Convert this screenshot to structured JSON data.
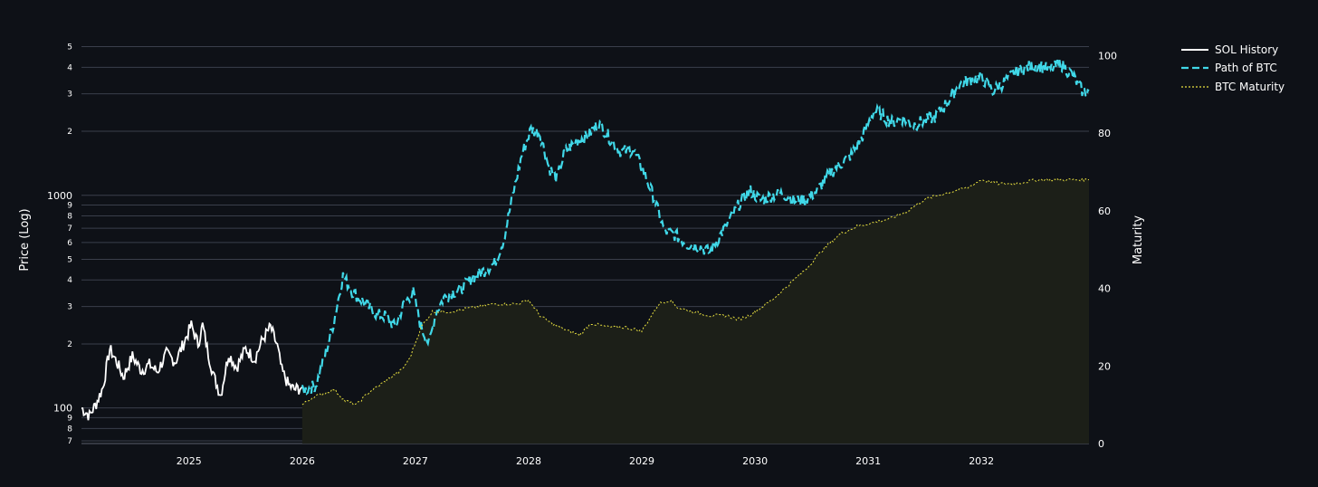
{
  "colors": {
    "background": "#0e1117",
    "grid": "#3a3f4b",
    "sol_history": "#ffffff",
    "path_of_btc": "#40d8e8",
    "btc_maturity_line": "#e8e040",
    "btc_maturity_fill": "#1c1f18",
    "text": "#ffffff"
  },
  "chart_data": {
    "type": "line",
    "title": "",
    "xlabel": "",
    "ylabel": "Price (Log)",
    "y2label": "Maturity",
    "yscale": "log",
    "ylim": [
      68,
      5600
    ],
    "y2lim": [
      0,
      105
    ],
    "xlim": [
      2024.05,
      2032.95
    ],
    "x_ticks": [
      2025,
      2026,
      2027,
      2028,
      2029,
      2030,
      2031,
      2032
    ],
    "x_tick_labels": [
      "2025",
      "2026",
      "2027",
      "2028",
      "2029",
      "2030",
      "2031",
      "2032"
    ],
    "y_major_ticks": [
      {
        "value": 100,
        "label": "100"
      },
      {
        "value": 1000,
        "label": "1000"
      }
    ],
    "y_minor_ticks": [
      {
        "value": 70,
        "label": "7"
      },
      {
        "value": 80,
        "label": "8"
      },
      {
        "value": 90,
        "label": "9"
      },
      {
        "value": 200,
        "label": "2"
      },
      {
        "value": 300,
        "label": "3"
      },
      {
        "value": 400,
        "label": "4"
      },
      {
        "value": 500,
        "label": "5"
      },
      {
        "value": 600,
        "label": "6"
      },
      {
        "value": 700,
        "label": "7"
      },
      {
        "value": 800,
        "label": "8"
      },
      {
        "value": 900,
        "label": "9"
      },
      {
        "value": 2000,
        "label": "2"
      },
      {
        "value": 3000,
        "label": "3"
      },
      {
        "value": 4000,
        "label": "4"
      },
      {
        "value": 5000,
        "label": "5"
      }
    ],
    "y2_ticks": [
      0,
      20,
      40,
      60,
      80,
      100
    ],
    "legend_position": "top-right",
    "legend": [
      {
        "name": "SOL History",
        "style": "solid"
      },
      {
        "name": "Path of BTC",
        "style": "dashed"
      },
      {
        "name": "BTC Maturity",
        "style": "dotted"
      }
    ],
    "series": [
      {
        "name": "SOL History",
        "axis": "left",
        "x": [
          2024.05,
          2024.12,
          2024.18,
          2024.24,
          2024.3,
          2024.36,
          2024.42,
          2024.5,
          2024.58,
          2024.65,
          2024.72,
          2024.8,
          2024.88,
          2024.95,
          2025.02,
          2025.08,
          2025.12,
          2025.17,
          2025.22,
          2025.28,
          2025.35,
          2025.42,
          2025.5,
          2025.58,
          2025.65,
          2025.72,
          2025.78,
          2025.82,
          2025.88,
          2025.93,
          2026.0
        ],
        "values": [
          100,
          92,
          105,
          125,
          190,
          165,
          140,
          175,
          150,
          160,
          148,
          180,
          165,
          200,
          245,
          200,
          245,
          180,
          140,
          115,
          180,
          155,
          190,
          170,
          210,
          240,
          195,
          150,
          128,
          122,
          125
        ]
      },
      {
        "name": "Path of BTC",
        "axis": "left",
        "x": [
          2026.0,
          2026.12,
          2026.2,
          2026.28,
          2026.36,
          2026.43,
          2026.5,
          2026.58,
          2026.66,
          2026.74,
          2026.82,
          2026.9,
          2026.98,
          2027.05,
          2027.12,
          2027.18,
          2027.25,
          2027.32,
          2027.4,
          2027.5,
          2027.6,
          2027.7,
          2027.78,
          2027.86,
          2027.94,
          2028.02,
          2028.1,
          2028.18,
          2028.25,
          2028.32,
          2028.42,
          2028.52,
          2028.62,
          2028.72,
          2028.82,
          2028.92,
          2029.0,
          2029.1,
          2029.2,
          2029.3,
          2029.4,
          2029.5,
          2029.6,
          2029.7,
          2029.8,
          2029.88,
          2029.96,
          2030.05,
          2030.15,
          2030.25,
          2030.35,
          2030.45,
          2030.55,
          2030.65,
          2030.75,
          2030.85,
          2030.95,
          2031.05,
          2031.12,
          2031.2,
          2031.3,
          2031.4,
          2031.5,
          2031.6,
          2031.7,
          2031.8,
          2031.9,
          2032.0,
          2032.1,
          2032.2,
          2032.3,
          2032.4,
          2032.5,
          2032.6,
          2032.7,
          2032.8,
          2032.9,
          2032.95
        ],
        "values": [
          120,
          128,
          175,
          255,
          420,
          360,
          330,
          300,
          275,
          270,
          240,
          310,
          350,
          240,
          200,
          280,
          330,
          350,
          360,
          410,
          440,
          480,
          620,
          1000,
          1550,
          2050,
          1950,
          1350,
          1200,
          1600,
          1800,
          1900,
          2200,
          1850,
          1600,
          1650,
          1350,
          1000,
          680,
          650,
          590,
          580,
          540,
          660,
          800,
          950,
          1050,
          950,
          1000,
          1020,
          940,
          960,
          1050,
          1250,
          1400,
          1550,
          1900,
          2500,
          2400,
          2200,
          2300,
          2150,
          2250,
          2350,
          2750,
          3300,
          3500,
          3600,
          3100,
          3400,
          3800,
          4000,
          4100,
          3900,
          4150,
          3700,
          3050,
          3100
        ]
      },
      {
        "name": "BTC Maturity",
        "axis": "right",
        "x": [
          2026.0,
          2026.1,
          2026.2,
          2026.28,
          2026.38,
          2026.48,
          2026.58,
          2026.68,
          2026.78,
          2026.88,
          2026.95,
          2027.05,
          2027.15,
          2027.3,
          2027.5,
          2027.7,
          2027.9,
          2028.0,
          2028.1,
          2028.2,
          2028.35,
          2028.45,
          2028.55,
          2028.7,
          2028.85,
          2029.0,
          2029.15,
          2029.25,
          2029.32,
          2029.45,
          2029.6,
          2029.75,
          2029.85,
          2029.95,
          2030.05,
          2030.15,
          2030.3,
          2030.45,
          2030.6,
          2030.75,
          2030.9,
          2031.05,
          2031.2,
          2031.35,
          2031.5,
          2031.62,
          2031.75,
          2031.88,
          2032.0,
          2032.15,
          2032.3,
          2032.5,
          2032.7,
          2032.95
        ],
        "values": [
          10,
          12,
          13,
          14,
          11,
          10,
          13,
          15,
          17,
          19,
          22,
          30,
          34,
          34,
          35,
          36,
          36,
          37,
          33,
          31,
          29,
          28,
          31,
          30,
          30,
          29,
          36,
          37,
          35,
          34,
          33,
          33,
          32,
          33,
          35,
          37,
          41,
          45,
          50,
          54,
          56,
          57,
          58,
          60,
          63,
          64,
          65,
          66,
          68,
          67,
          67,
          68,
          68,
          68
        ]
      }
    ]
  }
}
